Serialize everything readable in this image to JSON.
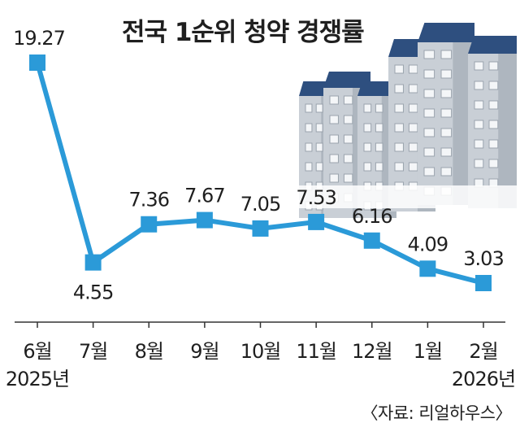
{
  "header": {
    "title": "전국 1순위 청약 경쟁률"
  },
  "footer": {
    "source": "〈자료: 리얼하우스〉"
  },
  "colors": {
    "line": "#2b9ad8",
    "marker": "#2b9ad8",
    "text": "#1f1f1f",
    "axis": "#333333"
  },
  "chart_data": {
    "type": "line",
    "title": "전국 1순위 청약 경쟁률",
    "xlabel": "",
    "ylabel": "",
    "categories": [
      "6월",
      "7월",
      "8월",
      "9월",
      "10월",
      "11월",
      "12월",
      "1월",
      "2월"
    ],
    "year_labels": [
      {
        "category": "6월",
        "text": "2025년"
      },
      {
        "category": "2월",
        "text": "2026년"
      }
    ],
    "series": [
      {
        "values": [
          19.27,
          4.55,
          7.36,
          7.67,
          7.05,
          7.53,
          6.16,
          4.09,
          3.03
        ]
      }
    ],
    "data_labels": [
      "19.27",
      "4.55",
      "7.36",
      "7.67",
      "7.05",
      "7.53",
      "6.16",
      "4.09",
      "3.03"
    ],
    "ylim": [
      0,
      20
    ],
    "grid": false,
    "legend": "none"
  }
}
